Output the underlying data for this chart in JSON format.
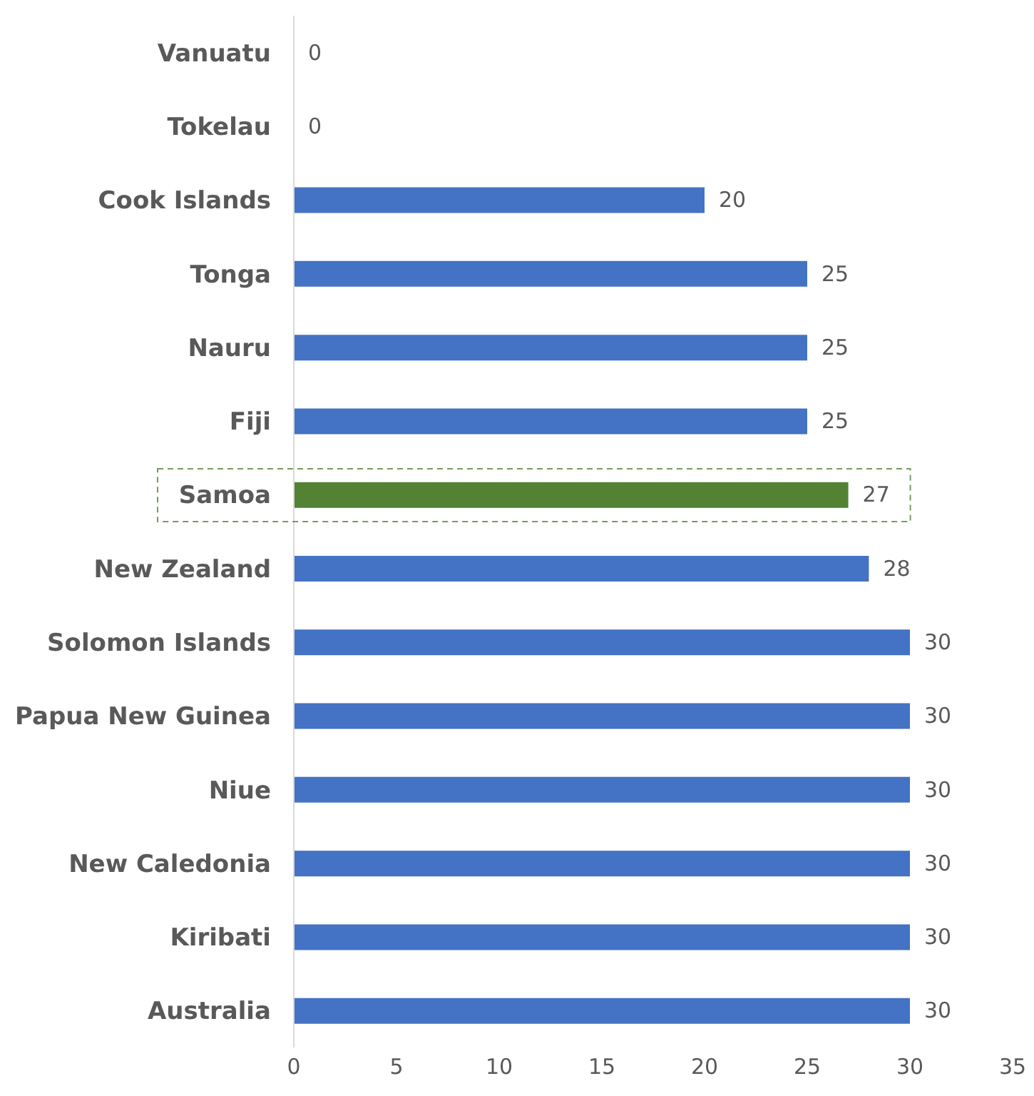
{
  "chart_data": {
    "type": "bar",
    "orientation": "horizontal",
    "categories": [
      "Vanuatu",
      "Tokelau",
      "Cook Islands",
      "Tonga",
      "Nauru",
      "Fiji",
      "Samoa",
      "New Zealand",
      "Solomon Islands",
      "Papua New Guinea",
      "Niue",
      "New Caledonia",
      "Kiribati",
      "Australia"
    ],
    "values": [
      0,
      0,
      20,
      25,
      25,
      25,
      27,
      28,
      30,
      30,
      30,
      30,
      30,
      30
    ],
    "colors": [
      "#4472c4",
      "#4472c4",
      "#4472c4",
      "#4472c4",
      "#4472c4",
      "#4472c4",
      "#548235",
      "#4472c4",
      "#4472c4",
      "#4472c4",
      "#4472c4",
      "#4472c4",
      "#4472c4",
      "#4472c4"
    ],
    "xlim": [
      0,
      35
    ],
    "xticks": [
      0,
      5,
      10,
      15,
      20,
      25,
      30,
      35
    ],
    "data_labels": true
  }
}
